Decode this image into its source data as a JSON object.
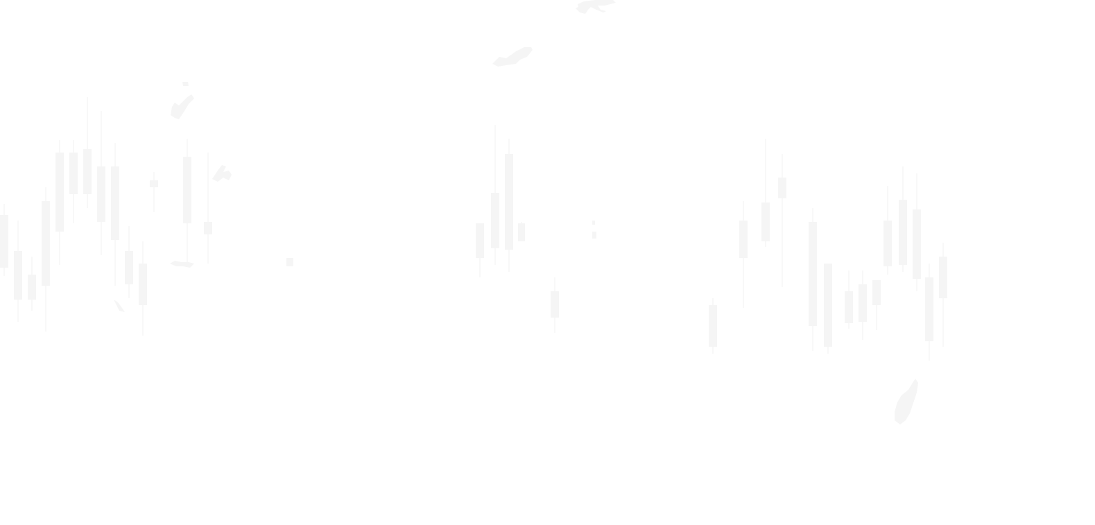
{
  "background_color": "#ffffff",
  "mark_color": "#f5f5f5",
  "description_shapes": [
    "candlestick-bars",
    "world-map-landmasses"
  ]
}
